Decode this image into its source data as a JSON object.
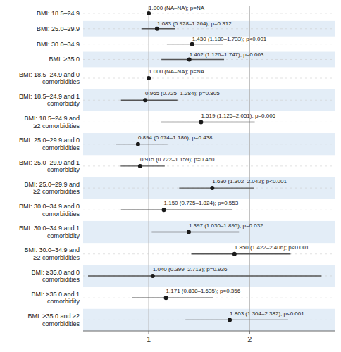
{
  "chart_data": {
    "type": "forest",
    "categories": [
      "BMI: 18.5–24.9",
      "BMI: 25.0–29.9",
      "BMI: 30.0–34.9",
      "BMI: ≥35.0",
      "BMI: 18.5–24.9 and 0\ncomorbidities",
      "BMI: 18.5–24.9 and 1\ncomorbidity",
      "BMI: 18.5–24.9 and\n≥2 comorbidities",
      "BMI: 25.0–29.9 and 0\ncomorbidities",
      "BMI: 25.0–29.9 and 1\ncomorbidity",
      "BMI: 25.0–29.9 and\n≥2 comorbidities",
      "BMI: 30.0–34.9 and 0\ncomorbidities",
      "BMI: 30.0–34.9 and 1\ncomorbidity",
      "BMI: 30.0–34.9 and\n≥2 comorbidities",
      "BMI: ≥35.0 and 0\ncomorbidities",
      "BMI: ≥35.0 and 1\ncomorbidity",
      "BMI: ≥35.0 and ≥2\ncomorbidities"
    ],
    "values": [
      1.0,
      1.083,
      1.43,
      1.402,
      1.0,
      0.965,
      1.519,
      0.894,
      0.915,
      1.63,
      1.15,
      1.397,
      1.85,
      1.04,
      1.171,
      1.803
    ],
    "ci_lo": [
      null,
      0.928,
      1.18,
      1.126,
      null,
      0.725,
      1.125,
      0.674,
      0.722,
      1.302,
      0.725,
      1.03,
      1.422,
      0.399,
      0.838,
      1.364
    ],
    "ci_hi": [
      null,
      1.264,
      1.733,
      1.747,
      null,
      1.284,
      2.051,
      1.186,
      1.159,
      2.042,
      1.824,
      1.895,
      2.406,
      2.713,
      1.635,
      2.382
    ],
    "annotations": [
      "1.000 (NA–NA); p=NA",
      "1.083 (0.928–1.264); p=0.312",
      "1.430 (1.180–1.733); p<0.001",
      "1.402 (1.126–1.747); p=0.003",
      "1.000 (NA–NA); p=NA",
      "0.965 (0.725–1.284); p=0.805",
      "1.519 (1.125–2.051); p=0.006",
      "0.894 (0.674–1.186); p=0.438",
      "0.915 (0.722–1.159); p=0.460",
      "1.630 (1.302–2.042); p<0.001",
      "1.150 (0.725–1.824); p=0.553",
      "1.397 (1.030–1.895); p=0.032",
      "1.850 (1.422–2.406); p<0.001",
      "1.040 (0.399–2.713); p=0.936",
      "1.171 (0.838–1.635); p=0.356",
      "1.803 (1.364–2.382); p<0.001"
    ],
    "color": "#1a1a1a",
    "xlim": [
      0.35,
      2.85
    ],
    "xticks": [
      1,
      2
    ],
    "grid": true
  }
}
